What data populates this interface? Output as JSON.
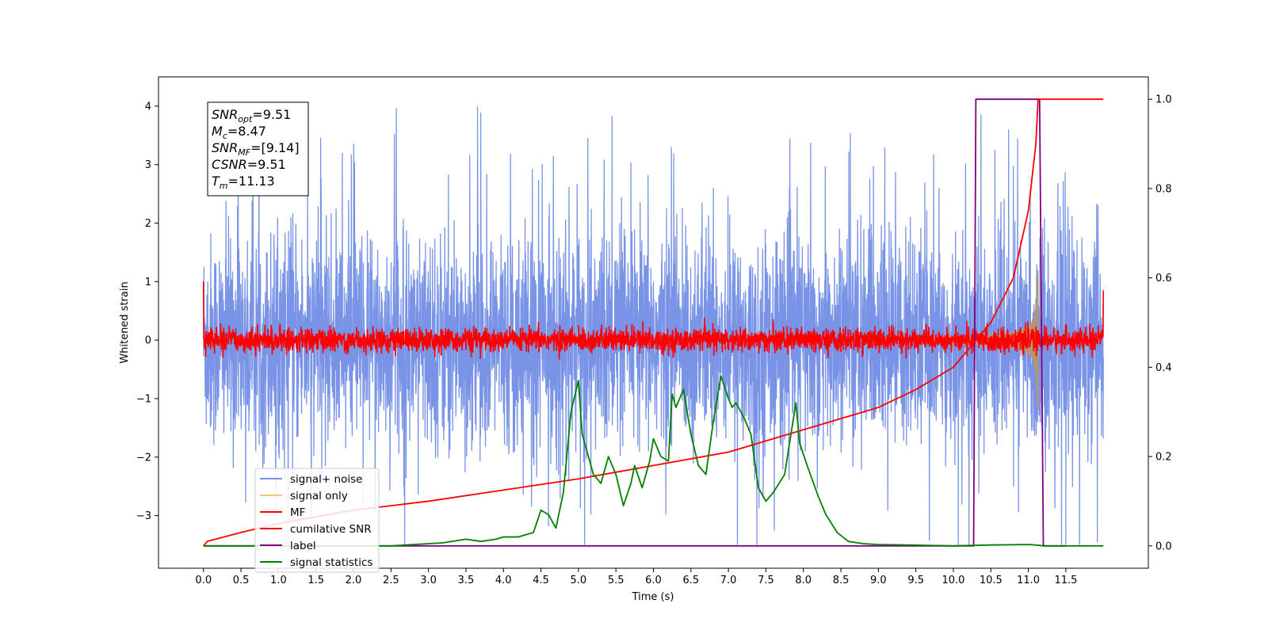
{
  "chart_data": {
    "type": "line",
    "xlabel": "Time (s)",
    "ylabel_left": "Whitened strain",
    "ylabel_right": "",
    "xlim": [
      -0.6,
      12.6
    ],
    "ylim_left": [
      -3.9,
      4.5
    ],
    "ylim_right": [
      -0.05,
      1.05
    ],
    "x_ticks": [
      "0.0",
      "0.5",
      "1.0",
      "1.5",
      "2.0",
      "2.5",
      "3.0",
      "3.5",
      "4.0",
      "4.5",
      "5.0",
      "5.5",
      "6.0",
      "6.5",
      "7.0",
      "7.5",
      "8.0",
      "8.5",
      "9.0",
      "9.5",
      "10.0",
      "10.5",
      "11.0",
      "11.5"
    ],
    "y_ticks_left": [
      "4",
      "3",
      "2",
      "1",
      "0",
      "−1",
      "−2",
      "−3"
    ],
    "y_ticks_right": [
      "1.0",
      "0.8",
      "0.6",
      "0.4",
      "0.2",
      "0.0"
    ],
    "grid": false,
    "legend_position": "lower-left",
    "annotation": {
      "lines": [
        {
          "sym": "SNR",
          "sub": "opt",
          "value": "=9.51"
        },
        {
          "sym": "M",
          "sub": "c",
          "value": "=8.47"
        },
        {
          "sym": "SNR",
          "sub": "MF",
          "value": "=[9.14]"
        },
        {
          "sym": "CSNR",
          "sub": "",
          "value": "=9.51"
        },
        {
          "sym": "T",
          "sub": "m",
          "value": "=11.13"
        }
      ]
    },
    "series": [
      {
        "name": "signal+ noise",
        "color": "#7994e6",
        "axis": "left",
        "kind": "noise",
        "x_range": [
          0.0,
          12.0
        ],
        "amplitude_1sigma": 0.9,
        "peak_max": 4.17,
        "peak_min": -3.5
      },
      {
        "name": "signal only",
        "color": "#f5c77a",
        "fill_color": "#b8956a",
        "axis": "left",
        "kind": "chirp",
        "x_range": [
          9.5,
          11.13
        ],
        "peak_amplitude": 1.2
      },
      {
        "name": "MF",
        "color": "#ff0000",
        "axis": "left",
        "kind": "noise",
        "x_range": [
          0.0,
          12.0
        ],
        "amplitude_1sigma": 0.1,
        "start_value": 1.0,
        "end_value": 0.85
      },
      {
        "name": "cumilative SNR",
        "color": "#ff0000",
        "axis": "right",
        "x": [
          0.0,
          0.05,
          0.5,
          1.0,
          2.0,
          3.0,
          4.0,
          5.0,
          6.0,
          7.0,
          8.0,
          9.0,
          9.5,
          10.0,
          10.5,
          10.8,
          11.0,
          11.1,
          11.13,
          12.0
        ],
        "values": [
          0.0,
          0.01,
          0.03,
          0.05,
          0.08,
          0.1,
          0.125,
          0.15,
          0.18,
          0.21,
          0.26,
          0.31,
          0.35,
          0.4,
          0.5,
          0.6,
          0.75,
          0.9,
          1.0,
          1.0
        ]
      },
      {
        "name": "label",
        "color": "#800080",
        "axis": "right",
        "x": [
          0.0,
          10.27,
          10.3,
          11.15,
          11.2,
          11.5
        ],
        "values": [
          0.0,
          0.0,
          1.0,
          1.0,
          0.0,
          0.0
        ]
      },
      {
        "name": "signal statistics",
        "color": "#008000",
        "axis": "right",
        "x": [
          0.0,
          0.5,
          1.0,
          1.5,
          2.0,
          2.5,
          3.0,
          3.2,
          3.5,
          3.7,
          3.9,
          4.0,
          4.2,
          4.4,
          4.5,
          4.6,
          4.7,
          4.8,
          4.9,
          5.0,
          5.05,
          5.1,
          5.2,
          5.3,
          5.4,
          5.5,
          5.6,
          5.7,
          5.75,
          5.85,
          5.95,
          6.0,
          6.1,
          6.2,
          6.25,
          6.3,
          6.4,
          6.5,
          6.6,
          6.7,
          6.8,
          6.9,
          7.0,
          7.05,
          7.1,
          7.2,
          7.3,
          7.4,
          7.5,
          7.6,
          7.75,
          7.9,
          7.95,
          8.05,
          8.2,
          8.3,
          8.45,
          8.6,
          8.8,
          9.0,
          9.4,
          9.7,
          10.0,
          10.5,
          11.0,
          11.1,
          11.2,
          12.0
        ],
        "values": [
          0.0,
          0.0,
          0.0,
          0.0,
          0.0,
          0.0,
          0.005,
          0.007,
          0.015,
          0.01,
          0.015,
          0.02,
          0.02,
          0.03,
          0.08,
          0.07,
          0.04,
          0.12,
          0.3,
          0.37,
          0.25,
          0.22,
          0.16,
          0.14,
          0.2,
          0.16,
          0.09,
          0.14,
          0.18,
          0.13,
          0.19,
          0.24,
          0.2,
          0.19,
          0.34,
          0.31,
          0.35,
          0.25,
          0.18,
          0.16,
          0.28,
          0.38,
          0.33,
          0.31,
          0.32,
          0.29,
          0.25,
          0.13,
          0.1,
          0.12,
          0.16,
          0.32,
          0.23,
          0.18,
          0.11,
          0.07,
          0.03,
          0.01,
          0.005,
          0.003,
          0.002,
          0.001,
          0.0,
          0.002,
          0.003,
          0.002,
          0.0,
          0.0
        ]
      }
    ]
  }
}
